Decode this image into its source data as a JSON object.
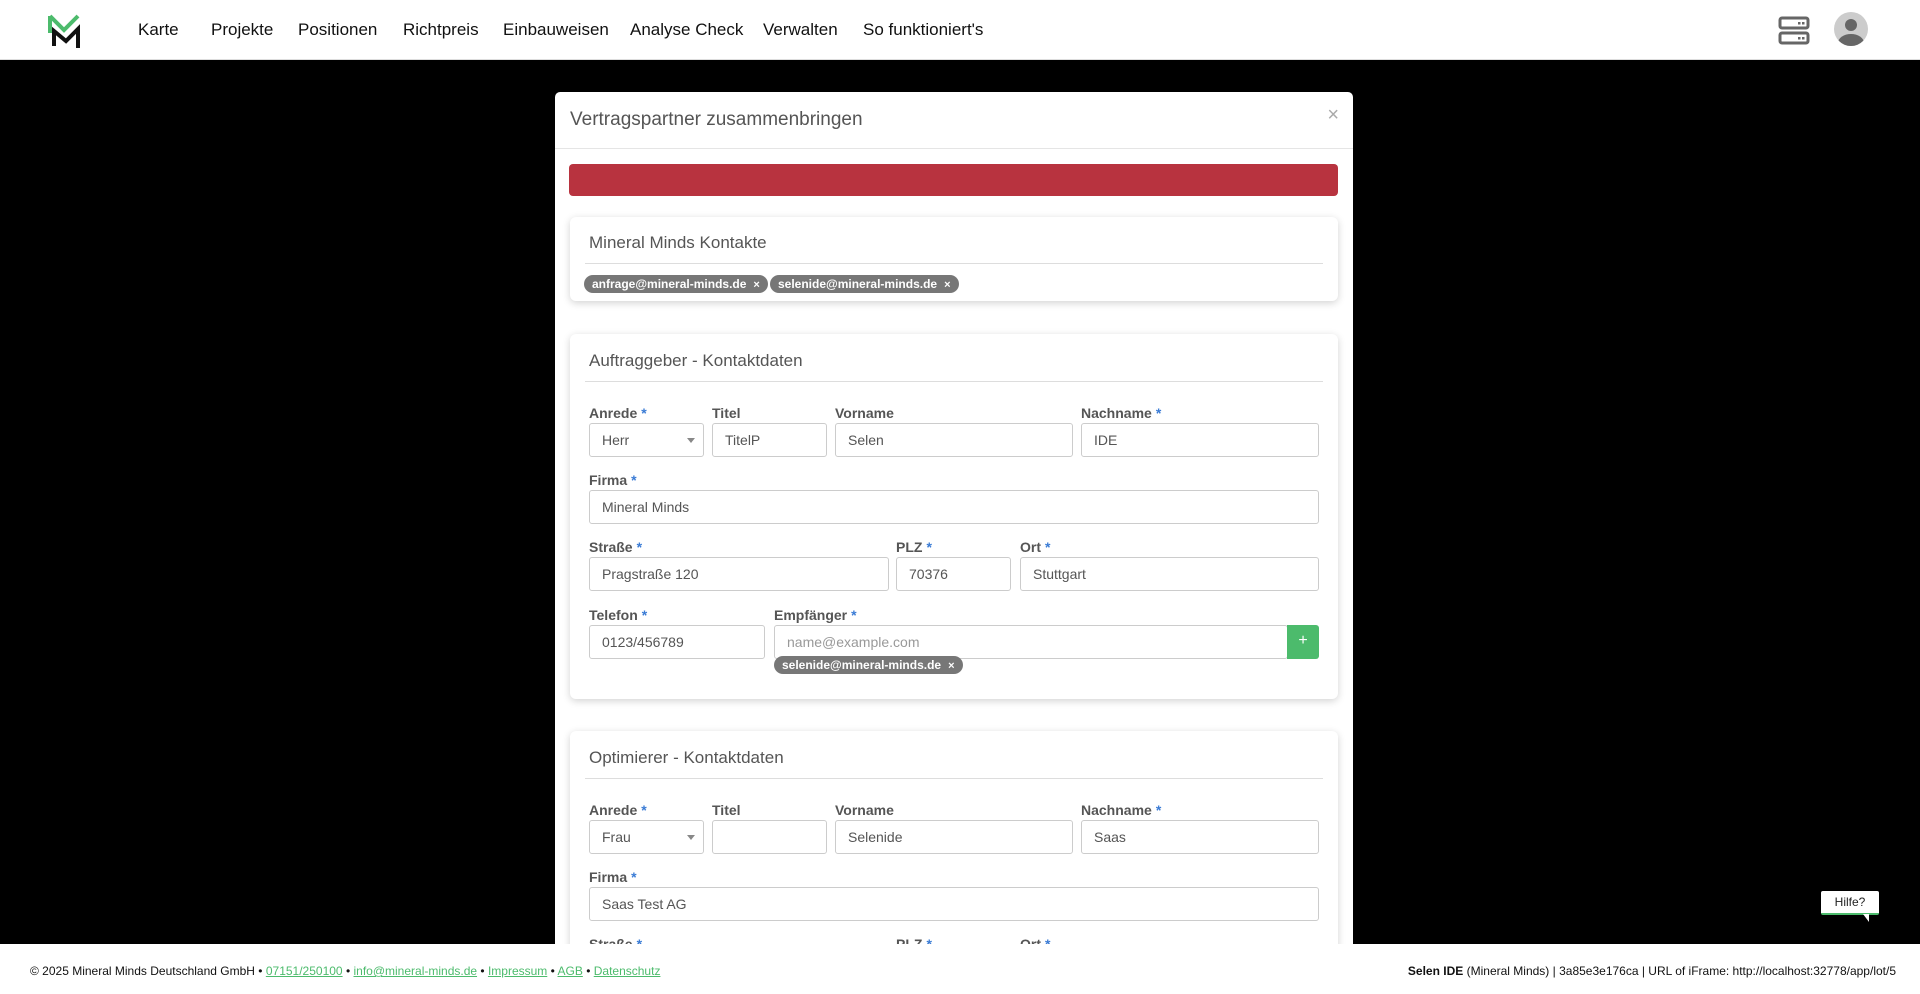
{
  "nav": {
    "items": [
      "Karte",
      "Projekte",
      "Positionen",
      "Richtpreis",
      "Einbauweisen",
      "Analyse Check",
      "Verwalten",
      "So funktioniert's"
    ],
    "icons": [
      "server-icon",
      "user-avatar-icon"
    ]
  },
  "modal": {
    "title": "Vertragspartner zusammenbringen",
    "close": "×",
    "alert_color": "#b8333f",
    "mm_contacts": {
      "title": "Mineral Minds Kontakte",
      "chips": [
        "anfrage@mineral-minds.de",
        "selenide@mineral-minds.de"
      ]
    },
    "auftraggeber": {
      "title": "Auftraggeber - Kontaktdaten",
      "labels": {
        "anrede": "Anrede",
        "titel": "Titel",
        "vorname": "Vorname",
        "nachname": "Nachname",
        "firma": "Firma",
        "strasse": "Straße",
        "plz": "PLZ",
        "ort": "Ort",
        "telefon": "Telefon",
        "empfaenger": "Empfänger"
      },
      "values": {
        "anrede": "Herr",
        "titel": "TitelP",
        "vorname": "Selen",
        "nachname": "IDE",
        "firma": "Mineral Minds",
        "strasse": "Pragstraße 120",
        "plz": "70376",
        "ort": "Stuttgart",
        "telefon": "0123/456789",
        "empfaenger": ""
      },
      "placeholders": {
        "empfaenger": "name@example.com"
      },
      "add_label": "+",
      "chips": [
        "selenide@mineral-minds.de"
      ]
    },
    "optimierer": {
      "title": "Optimierer - Kontaktdaten",
      "labels": {
        "anrede": "Anrede",
        "titel": "Titel",
        "vorname": "Vorname",
        "nachname": "Nachname",
        "firma": "Firma",
        "strasse": "Straße",
        "plz": "PLZ",
        "ort": "Ort"
      },
      "values": {
        "anrede": "Frau",
        "titel": "",
        "vorname": "Selenide",
        "nachname": "Saas",
        "firma": "Saas Test AG"
      }
    },
    "required_mark": "*",
    "chip_remove": "×"
  },
  "help": {
    "label": "Hilfe?"
  },
  "footer": {
    "copyright": "© 2025 Mineral Minds Deutschland GmbH",
    "sep": "•",
    "phone": "07151/250100",
    "email": "info@mineral-minds.de",
    "impressum": "Impressum",
    "agb": "AGB",
    "datenschutz": "Datenschutz",
    "user": "Selen IDE",
    "org": "(Mineral Minds)",
    "info": "| 3a85e3e176ca | URL of iFrame: http://localhost:32778/app/lot/5"
  },
  "colors": {
    "brand_green": "#4cbb6c",
    "chip_gray": "#777777"
  }
}
